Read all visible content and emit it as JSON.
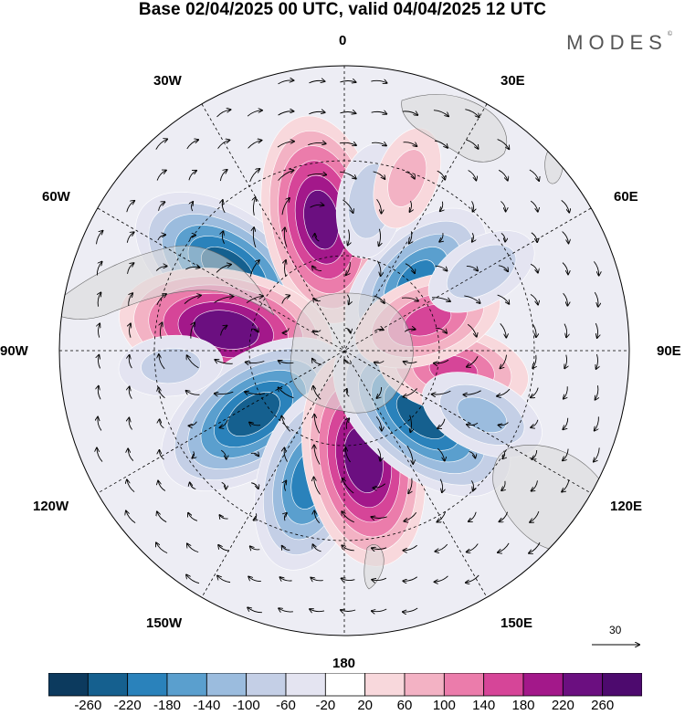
{
  "title": "Base 02/04/2025 00 UTC, valid 04/04/2025 12 UTC",
  "logo": "MODES",
  "logo_mark": "©",
  "longitude_labels": {
    "top": "0",
    "top_right": "30E",
    "right_upper": "60E",
    "right": "90E",
    "right_lower": "120E",
    "bottom_right": "150E",
    "bottom": "180",
    "bottom_left": "150W",
    "left_lower": "120W",
    "left": "90W",
    "left_upper": "60W",
    "top_left": "30W"
  },
  "reference_vector": "30",
  "colorbar": {
    "ticks": [
      "-260",
      "-220",
      "-180",
      "-140",
      "-100",
      "-60",
      "-20",
      "20",
      "60",
      "100",
      "140",
      "180",
      "220",
      "260"
    ],
    "colors": [
      "#0c3a5e",
      "#15608f",
      "#2a82bb",
      "#5a9fce",
      "#9bbcde",
      "#c4cfe6",
      "#e4e4f1",
      "#ffffff",
      "#f8d8dc",
      "#f3b2c4",
      "#eb7cab",
      "#d64598",
      "#a3188a",
      "#6b0f80",
      "#4d0a6e"
    ]
  },
  "chart_data": {
    "type": "heatmap",
    "title": "Base 02/04/2025 00 UTC, valid 04/04/2025 12 UTC",
    "projection": "south polar stereographic",
    "levels": [
      -260,
      -220,
      -180,
      -140,
      -100,
      -60,
      -20,
      20,
      60,
      100,
      140,
      180,
      220,
      260
    ],
    "anomalies": [
      {
        "lon": -55,
        "lat": -45,
        "value": -240
      },
      {
        "lon": -10,
        "lat": -48,
        "value": 240
      },
      {
        "lon": -80,
        "lat": -52,
        "value": 250
      },
      {
        "lon": -125,
        "lat": -55,
        "value": -240
      },
      {
        "lon": -165,
        "lat": -48,
        "value": -200
      },
      {
        "lon": 170,
        "lat": -55,
        "value": 250
      },
      {
        "lon": 130,
        "lat": -58,
        "value": -240
      },
      {
        "lon": 45,
        "lat": -58,
        "value": -180
      },
      {
        "lon": 100,
        "lat": -55,
        "value": 140
      },
      {
        "lon": 70,
        "lat": -62,
        "value": 140
      },
      {
        "lon": 10,
        "lat": -42,
        "value": -80
      },
      {
        "lon": 20,
        "lat": -32,
        "value": 60
      },
      {
        "lon": -95,
        "lat": -35,
        "value": -60
      },
      {
        "lon": 60,
        "lat": -40,
        "value": -80
      },
      {
        "lon": 115,
        "lat": -42,
        "value": -100
      }
    ]
  }
}
